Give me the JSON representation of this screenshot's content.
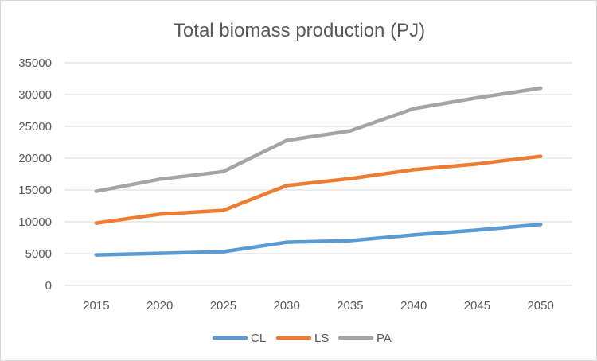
{
  "chart_data": {
    "type": "line",
    "title": "Total biomass production (PJ)",
    "xlabel": "",
    "ylabel": "",
    "categories": [
      "2015",
      "2020",
      "2025",
      "2030",
      "2035",
      "2040",
      "2045",
      "2050"
    ],
    "ylim": [
      0,
      35000
    ],
    "yticks": [
      "0",
      "5000",
      "10000",
      "15000",
      "20000",
      "25000",
      "30000",
      "35000"
    ],
    "grid": "horizontal",
    "legend": "bottom",
    "series": [
      {
        "name": "CL",
        "color": "#5b9bd5",
        "values": [
          4800,
          5050,
          5300,
          6800,
          7050,
          7950,
          8700,
          9600
        ]
      },
      {
        "name": "LS",
        "color": "#ed7d31",
        "values": [
          9800,
          11200,
          11800,
          15700,
          16800,
          18200,
          19100,
          20300
        ]
      },
      {
        "name": "PA",
        "color": "#a5a5a5",
        "values": [
          14800,
          16700,
          17900,
          22800,
          24300,
          27800,
          29500,
          31000
        ]
      }
    ]
  }
}
